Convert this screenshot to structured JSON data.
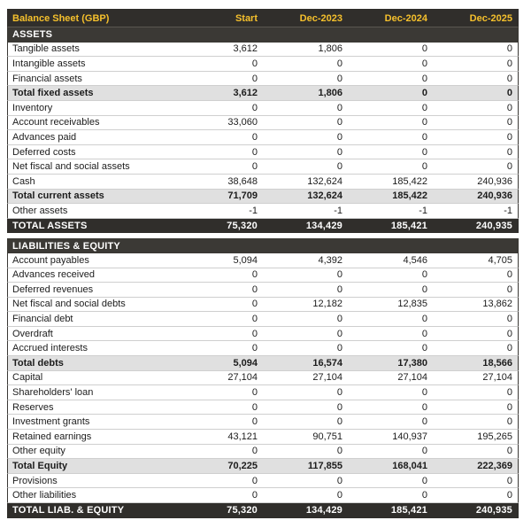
{
  "colors": {
    "dark_bg": "#302e2b",
    "section_bg": "#3b3935",
    "accent_yellow": "#f5c02c",
    "subtotal_bg": "#e0e0e0",
    "row_border": "#cfcfcf",
    "side_border": "#3a3835",
    "text": "#1c1c1c"
  },
  "chart_data": {
    "type": "table",
    "title": "Balance Sheet (GBP)",
    "columns": [
      "Start",
      "Dec-2023",
      "Dec-2024",
      "Dec-2025"
    ],
    "sections": [
      {
        "header": "ASSETS",
        "rows": [
          {
            "label": "Tangible assets",
            "style": "normal",
            "values": [
              "3,612",
              "1,806",
              "0",
              "0"
            ]
          },
          {
            "label": "Intangible assets",
            "style": "normal",
            "values": [
              "0",
              "0",
              "0",
              "0"
            ]
          },
          {
            "label": "Financial assets",
            "style": "normal",
            "values": [
              "0",
              "0",
              "0",
              "0"
            ]
          },
          {
            "label": "Total fixed assets",
            "style": "subtotal",
            "values": [
              "3,612",
              "1,806",
              "0",
              "0"
            ]
          },
          {
            "label": "Inventory",
            "style": "normal",
            "values": [
              "0",
              "0",
              "0",
              "0"
            ]
          },
          {
            "label": "Account receivables",
            "style": "normal",
            "values": [
              "33,060",
              "0",
              "0",
              "0"
            ]
          },
          {
            "label": "Advances paid",
            "style": "normal",
            "values": [
              "0",
              "0",
              "0",
              "0"
            ]
          },
          {
            "label": "Deferred costs",
            "style": "normal",
            "values": [
              "0",
              "0",
              "0",
              "0"
            ]
          },
          {
            "label": "Net fiscal and social assets",
            "style": "normal",
            "values": [
              "0",
              "0",
              "0",
              "0"
            ]
          },
          {
            "label": "Cash",
            "style": "normal",
            "values": [
              "38,648",
              "132,624",
              "185,422",
              "240,936"
            ]
          },
          {
            "label": "Total current assets",
            "style": "subtotal",
            "values": [
              "71,709",
              "132,624",
              "185,422",
              "240,936"
            ]
          },
          {
            "label": "Other assets",
            "style": "normal",
            "values": [
              "-1",
              "-1",
              "-1",
              "-1"
            ]
          }
        ],
        "total": {
          "label": "TOTAL ASSETS",
          "values": [
            "75,320",
            "134,429",
            "185,421",
            "240,935"
          ]
        }
      },
      {
        "header": "LIABILITIES & EQUITY",
        "rows": [
          {
            "label": "Account payables",
            "style": "normal",
            "values": [
              "5,094",
              "4,392",
              "4,546",
              "4,705"
            ]
          },
          {
            "label": "Advances received",
            "style": "normal",
            "values": [
              "0",
              "0",
              "0",
              "0"
            ]
          },
          {
            "label": "Deferred revenues",
            "style": "normal",
            "values": [
              "0",
              "0",
              "0",
              "0"
            ]
          },
          {
            "label": "Net fiscal and social debts",
            "style": "normal",
            "values": [
              "0",
              "12,182",
              "12,835",
              "13,862"
            ]
          },
          {
            "label": "Financial debt",
            "style": "normal",
            "values": [
              "0",
              "0",
              "0",
              "0"
            ]
          },
          {
            "label": "Overdraft",
            "style": "normal",
            "values": [
              "0",
              "0",
              "0",
              "0"
            ]
          },
          {
            "label": "Accrued interests",
            "style": "normal",
            "values": [
              "0",
              "0",
              "0",
              "0"
            ]
          },
          {
            "label": "Total debts",
            "style": "subtotal",
            "values": [
              "5,094",
              "16,574",
              "17,380",
              "18,566"
            ]
          },
          {
            "label": "Capital",
            "style": "normal",
            "values": [
              "27,104",
              "27,104",
              "27,104",
              "27,104"
            ]
          },
          {
            "label": "Shareholders' loan",
            "style": "normal",
            "values": [
              "0",
              "0",
              "0",
              "0"
            ]
          },
          {
            "label": "Reserves",
            "style": "normal",
            "values": [
              "0",
              "0",
              "0",
              "0"
            ]
          },
          {
            "label": "Investment grants",
            "style": "normal",
            "values": [
              "0",
              "0",
              "0",
              "0"
            ]
          },
          {
            "label": "Retained earnings",
            "style": "normal",
            "values": [
              "43,121",
              "90,751",
              "140,937",
              "195,265"
            ]
          },
          {
            "label": "Other equity",
            "style": "normal",
            "values": [
              "0",
              "0",
              "0",
              "0"
            ]
          },
          {
            "label": "Total Equity",
            "style": "subtotal",
            "values": [
              "70,225",
              "117,855",
              "168,041",
              "222,369"
            ]
          },
          {
            "label": "Provisions",
            "style": "normal",
            "values": [
              "0",
              "0",
              "0",
              "0"
            ]
          },
          {
            "label": "Other liabilities",
            "style": "normal",
            "values": [
              "0",
              "0",
              "0",
              "0"
            ]
          }
        ],
        "total": {
          "label": "TOTAL LIAB. & EQUITY",
          "values": [
            "75,320",
            "134,429",
            "185,421",
            "240,935"
          ]
        }
      }
    ]
  }
}
